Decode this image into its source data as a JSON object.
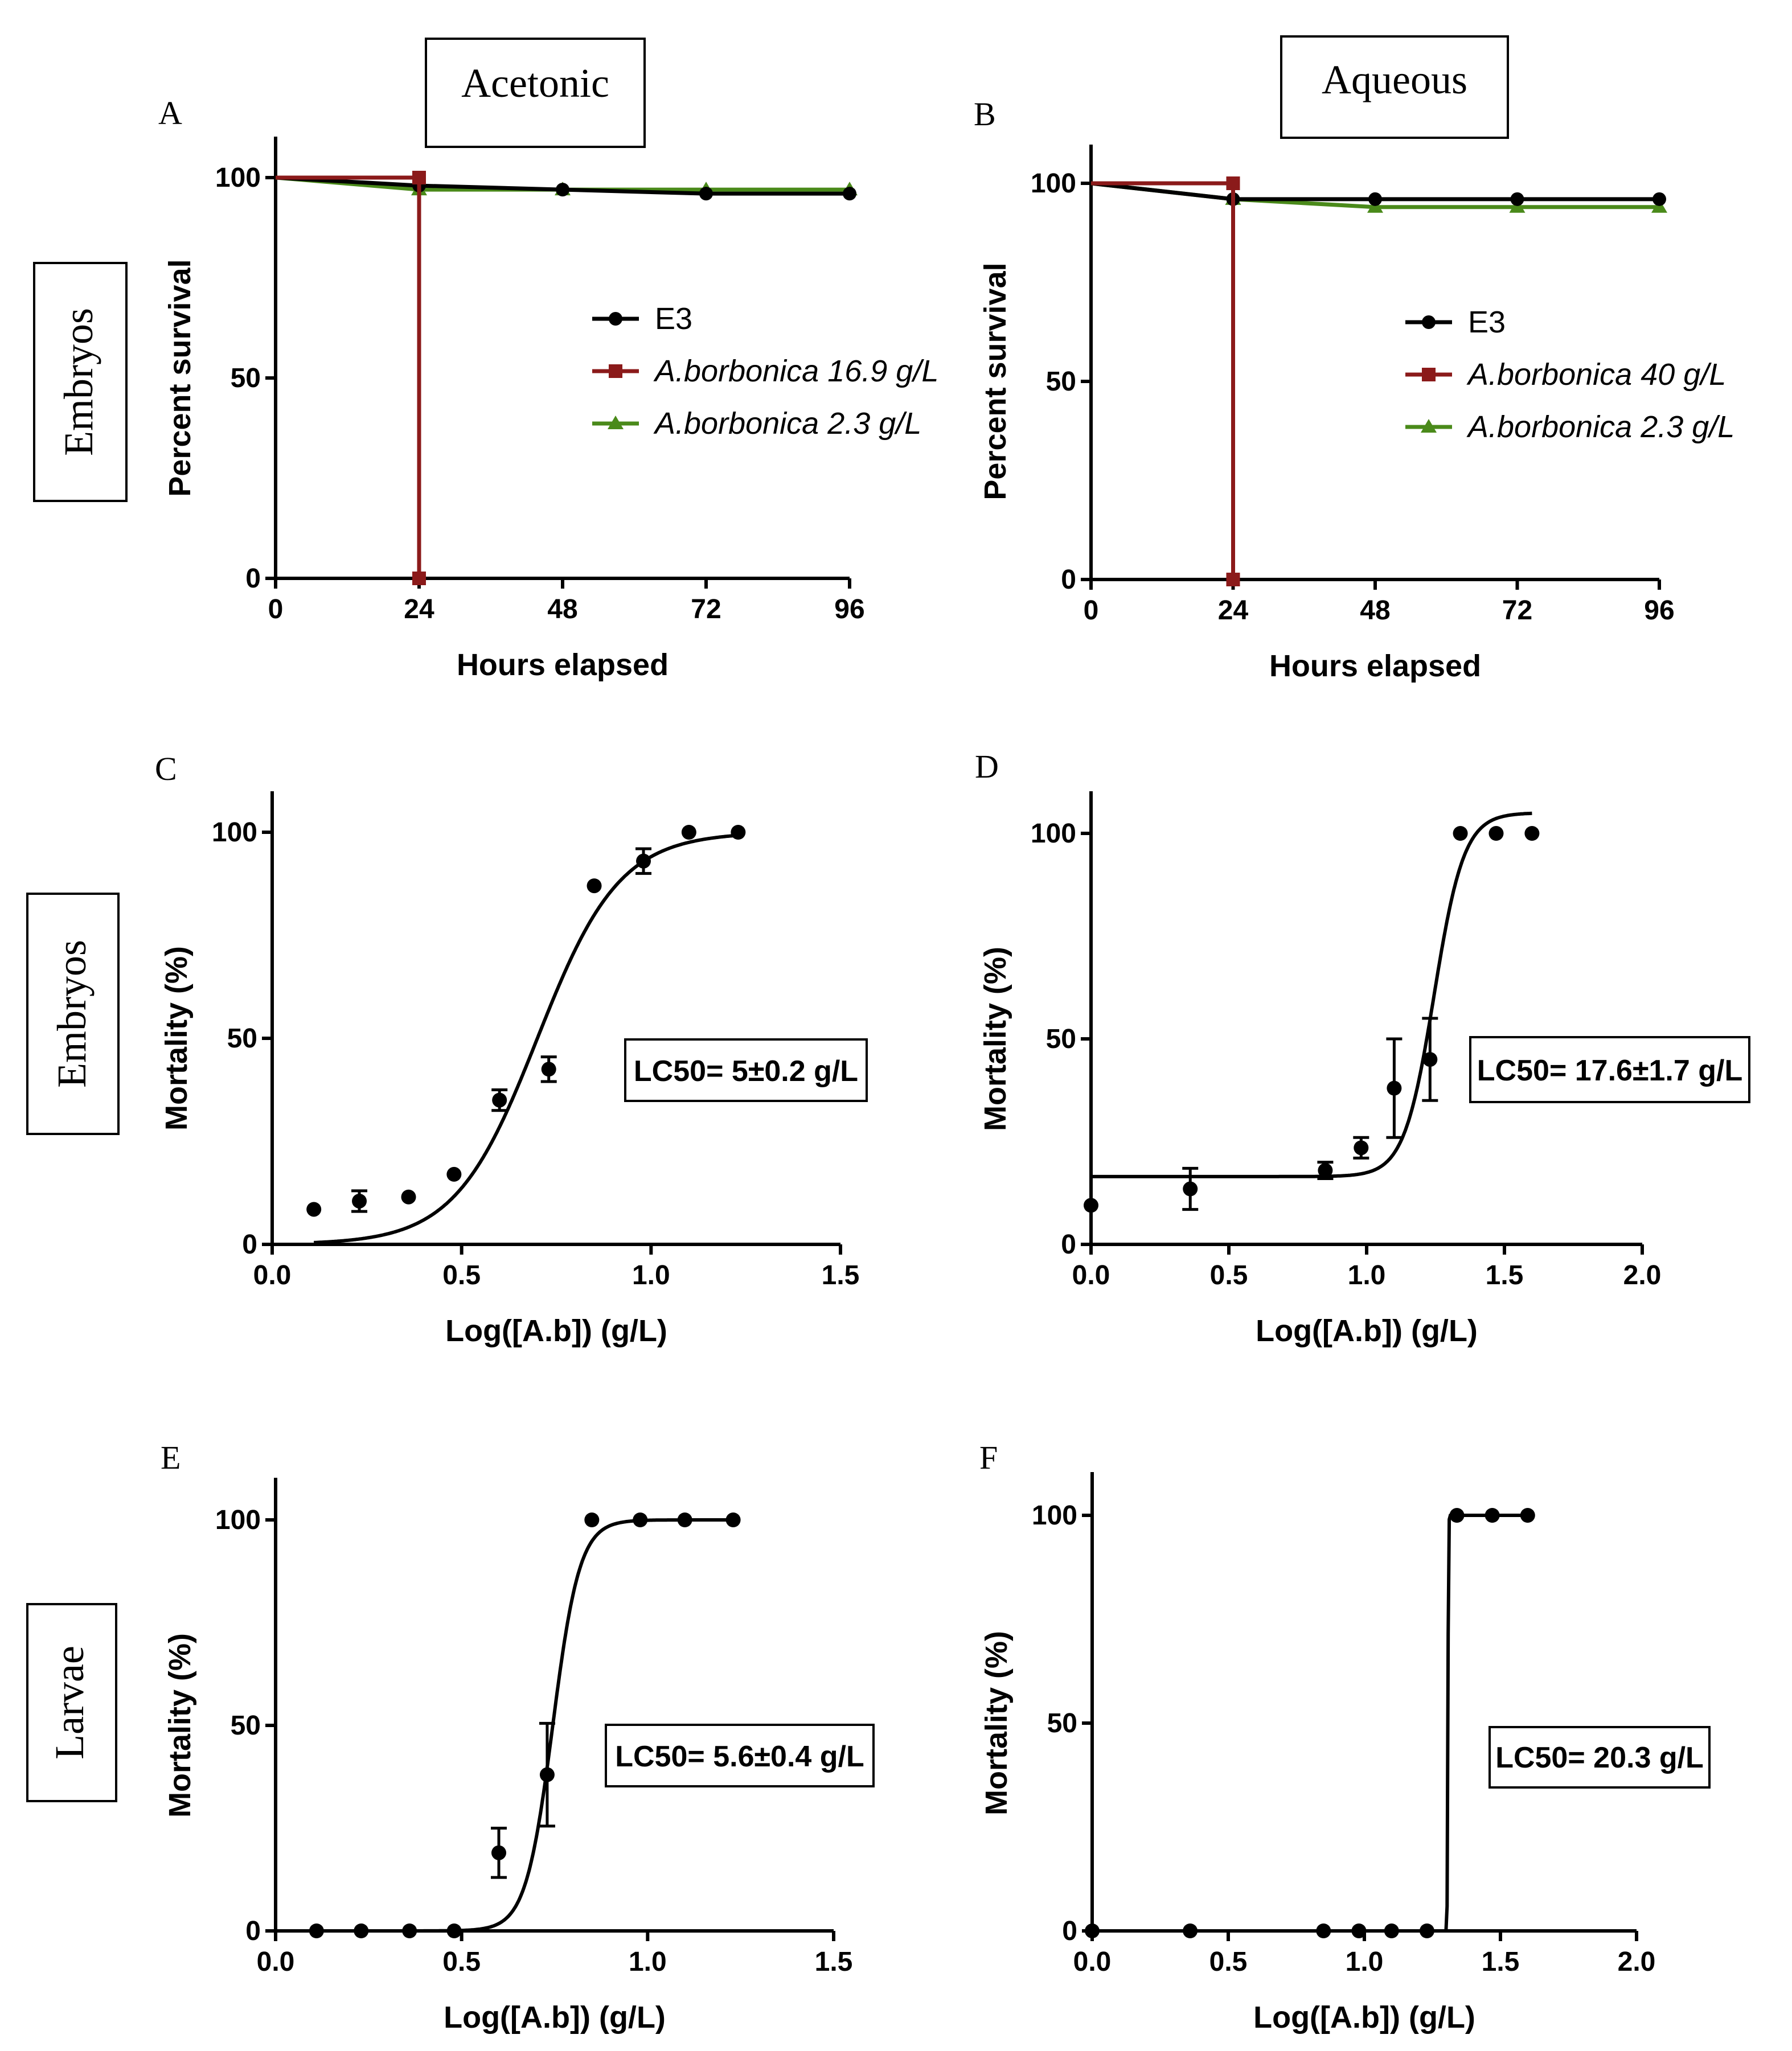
{
  "column_labels": [
    "Acetonic",
    "Aqueous"
  ],
  "row_labels": [
    "Embryos",
    "Embryos",
    "Larvae"
  ],
  "colors": {
    "e3": "#000000",
    "high": "#8b1a1a",
    "low": "#4a8a1a"
  },
  "chart_data": [
    {
      "panel": "A",
      "type": "line",
      "xlabel": "Hours elapsed",
      "ylabel": "Percent survival",
      "xlim": [
        0,
        96
      ],
      "ylim": [
        0,
        100
      ],
      "xticks": [
        "0",
        "24",
        "48",
        "72",
        "96"
      ],
      "yticks": [
        "0",
        "50",
        "100"
      ],
      "series": [
        {
          "name": "E3",
          "marker": "circle",
          "x": [
            0,
            24,
            48,
            72,
            96
          ],
          "y": [
            100,
            98,
            97,
            96,
            96
          ]
        },
        {
          "name": "A.borbonica 16.9 g/L",
          "marker": "square",
          "x": [
            0,
            24,
            24
          ],
          "y": [
            100,
            100,
            0
          ]
        },
        {
          "name": "A.borbonica 2.3 g/L",
          "marker": "triangle",
          "x": [
            0,
            24,
            48,
            72,
            96
          ],
          "y": [
            100,
            97,
            97,
            97,
            97
          ]
        }
      ]
    },
    {
      "panel": "B",
      "type": "line",
      "xlabel": "Hours elapsed",
      "ylabel": "Percent survival",
      "xlim": [
        0,
        96
      ],
      "ylim": [
        0,
        100
      ],
      "xticks": [
        "0",
        "24",
        "48",
        "72",
        "96"
      ],
      "yticks": [
        "0",
        "50",
        "100"
      ],
      "series": [
        {
          "name": "E3",
          "marker": "circle",
          "x": [
            0,
            24,
            48,
            72,
            96
          ],
          "y": [
            100,
            96,
            96,
            96,
            96
          ]
        },
        {
          "name": "A.borbonica 40 g/L",
          "marker": "square",
          "x": [
            0,
            24,
            24
          ],
          "y": [
            100,
            100,
            0
          ]
        },
        {
          "name": "A.borbonica 2.3 g/L",
          "marker": "triangle",
          "x": [
            0,
            24,
            48,
            72,
            96
          ],
          "y": [
            100,
            96,
            94,
            94,
            94
          ]
        }
      ]
    },
    {
      "panel": "C",
      "type": "scatter",
      "xlabel": "Log([A.b]) (g/L)",
      "ylabel": "Mortality (%)",
      "xlim": [
        0,
        1.5
      ],
      "ylim": [
        0,
        100
      ],
      "xticks": [
        "0.0",
        "0.5",
        "1.0",
        "1.5"
      ],
      "yticks": [
        "0",
        "50",
        "100"
      ],
      "annotation": "LC50= 5±0.2 g/L",
      "points": [
        {
          "x": 0.11,
          "y": 8.5,
          "err": 0
        },
        {
          "x": 0.23,
          "y": 10.5,
          "err": 2.5
        },
        {
          "x": 0.36,
          "y": 11.5,
          "err": 0
        },
        {
          "x": 0.48,
          "y": 17,
          "err": 0
        },
        {
          "x": 0.6,
          "y": 35,
          "err": 2.5
        },
        {
          "x": 0.73,
          "y": 42.5,
          "err": 3
        },
        {
          "x": 0.85,
          "y": 87,
          "err": 0
        },
        {
          "x": 0.98,
          "y": 93,
          "err": 3
        },
        {
          "x": 1.1,
          "y": 100,
          "err": 0
        },
        {
          "x": 1.23,
          "y": 100,
          "err": 0
        }
      ],
      "fit": {
        "bottom": 0,
        "top": 100,
        "logLC50": 0.7,
        "hill": 4,
        "xmin": 0.11,
        "xmax": 1.23
      }
    },
    {
      "panel": "D",
      "type": "scatter",
      "xlabel": "Log([A.b]) (g/L)",
      "ylabel": "Mortality (%)",
      "xlim": [
        0,
        2.0
      ],
      "ylim": [
        0,
        100
      ],
      "xticks": [
        "0.0",
        "0.5",
        "1.0",
        "1.5",
        "2.0"
      ],
      "yticks": [
        "0",
        "50",
        "100"
      ],
      "annotation": "LC50= 17.6±1.7 g/L",
      "points": [
        {
          "x": 0,
          "y": 9.5,
          "err": 0
        },
        {
          "x": 0.36,
          "y": 13.5,
          "err": 5
        },
        {
          "x": 0.85,
          "y": 18,
          "err": 2
        },
        {
          "x": 0.98,
          "y": 23.5,
          "err": 2.5
        },
        {
          "x": 1.1,
          "y": 38,
          "err": 12
        },
        {
          "x": 1.23,
          "y": 45,
          "err": 10
        },
        {
          "x": 1.34,
          "y": 100,
          "err": 0
        },
        {
          "x": 1.47,
          "y": 100,
          "err": 0
        },
        {
          "x": 1.6,
          "y": 100,
          "err": 0
        }
      ],
      "fit": {
        "bottom": 16.5,
        "top": 105,
        "logLC50": 1.245,
        "hill": 8,
        "xmin": 0,
        "xmax": 1.6
      }
    },
    {
      "panel": "E",
      "type": "scatter",
      "xlabel": "Log([A.b]) (g/L)",
      "ylabel": "Mortality (%)",
      "xlim": [
        0,
        1.5
      ],
      "ylim": [
        0,
        100
      ],
      "xticks": [
        "0.0",
        "0.5",
        "1.0",
        "1.5"
      ],
      "yticks": [
        "0",
        "50",
        "100"
      ],
      "annotation": "LC50= 5.6±0.4 g/L",
      "points": [
        {
          "x": 0.11,
          "y": 0,
          "err": 0
        },
        {
          "x": 0.23,
          "y": 0,
          "err": 0
        },
        {
          "x": 0.36,
          "y": 0,
          "err": 0
        },
        {
          "x": 0.48,
          "y": 0,
          "err": 0
        },
        {
          "x": 0.6,
          "y": 19,
          "err": 6
        },
        {
          "x": 0.73,
          "y": 38,
          "err": 12.5
        },
        {
          "x": 0.85,
          "y": 100,
          "err": 0
        },
        {
          "x": 0.98,
          "y": 100,
          "err": 0
        },
        {
          "x": 1.1,
          "y": 100,
          "err": 0
        },
        {
          "x": 1.23,
          "y": 100,
          "err": 0
        }
      ],
      "fit": {
        "bottom": 0,
        "top": 100,
        "logLC50": 0.745,
        "hill": 12,
        "xmin": 0.11,
        "xmax": 1.23
      }
    },
    {
      "panel": "F",
      "type": "scatter",
      "xlabel": "Log([A.b]) (g/L)",
      "ylabel": "Mortality (%)",
      "xlim": [
        0,
        2.0
      ],
      "ylim": [
        0,
        100
      ],
      "xticks": [
        "0.0",
        "0.5",
        "1.0",
        "1.5",
        "2.0"
      ],
      "yticks": [
        "0",
        "50",
        "100"
      ],
      "annotation": "LC50= 20.3 g/L",
      "points": [
        {
          "x": 0,
          "y": 0,
          "err": 0
        },
        {
          "x": 0.36,
          "y": 0,
          "err": 0
        },
        {
          "x": 0.85,
          "y": 0,
          "err": 0
        },
        {
          "x": 0.98,
          "y": 0,
          "err": 0
        },
        {
          "x": 1.1,
          "y": 0,
          "err": 0
        },
        {
          "x": 1.23,
          "y": 0,
          "err": 0
        },
        {
          "x": 1.34,
          "y": 100,
          "err": 0
        },
        {
          "x": 1.47,
          "y": 100,
          "err": 0
        },
        {
          "x": 1.6,
          "y": 100,
          "err": 0
        }
      ],
      "fit": {
        "bottom": 0,
        "top": 100,
        "logLC50": 1.307,
        "hill": 400,
        "xmin": 0,
        "xmax": 1.6
      }
    }
  ]
}
